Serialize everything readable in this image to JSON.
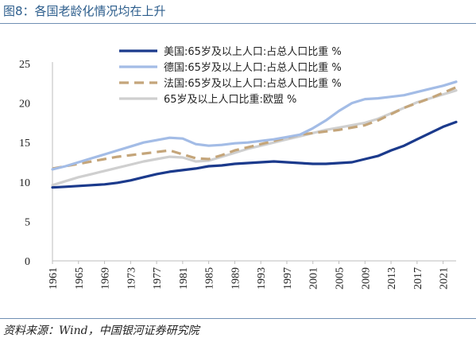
{
  "title": "图8：各国老龄化情况均在上升",
  "source": "资料来源：Wind，中国银河证券研究院",
  "chart_data": {
    "type": "line",
    "title": "图8：各国老龄化情况均在上升",
    "xlabel": "",
    "ylabel": "",
    "xlim": [
      1961,
      2023
    ],
    "ylim": [
      0,
      25
    ],
    "yticks": [
      0,
      5,
      10,
      15,
      20,
      25
    ],
    "xticks": [
      "1961",
      "1965",
      "1969",
      "1973",
      "1977",
      "1981",
      "1985",
      "1989",
      "1993",
      "1997",
      "2001",
      "2005",
      "2009",
      "2013",
      "2017",
      "2021"
    ],
    "grid": false,
    "legend_position": "top-center",
    "series": [
      {
        "name": "美国:65岁及以上人口:占总人口比重 %",
        "color": "#1b3a8c",
        "dash": "solid",
        "points": [
          [
            1961,
            9.3
          ],
          [
            1963,
            9.4
          ],
          [
            1965,
            9.5
          ],
          [
            1967,
            9.6
          ],
          [
            1969,
            9.7
          ],
          [
            1971,
            9.9
          ],
          [
            1973,
            10.2
          ],
          [
            1975,
            10.6
          ],
          [
            1977,
            11.0
          ],
          [
            1979,
            11.3
          ],
          [
            1981,
            11.5
          ],
          [
            1983,
            11.7
          ],
          [
            1985,
            12.0
          ],
          [
            1987,
            12.1
          ],
          [
            1989,
            12.3
          ],
          [
            1991,
            12.4
          ],
          [
            1993,
            12.5
          ],
          [
            1995,
            12.6
          ],
          [
            1997,
            12.5
          ],
          [
            1999,
            12.4
          ],
          [
            2001,
            12.3
          ],
          [
            2003,
            12.3
          ],
          [
            2005,
            12.4
          ],
          [
            2007,
            12.5
          ],
          [
            2009,
            12.9
          ],
          [
            2011,
            13.3
          ],
          [
            2013,
            14.0
          ],
          [
            2015,
            14.6
          ],
          [
            2017,
            15.4
          ],
          [
            2019,
            16.2
          ],
          [
            2021,
            17.0
          ],
          [
            2023,
            17.6
          ]
        ]
      },
      {
        "name": "德国:65岁及以上人口:占总人口比重 %",
        "color": "#a3bce6",
        "dash": "solid",
        "points": [
          [
            1961,
            11.6
          ],
          [
            1963,
            12.0
          ],
          [
            1965,
            12.5
          ],
          [
            1967,
            13.0
          ],
          [
            1969,
            13.5
          ],
          [
            1971,
            14.0
          ],
          [
            1973,
            14.5
          ],
          [
            1975,
            15.0
          ],
          [
            1977,
            15.3
          ],
          [
            1979,
            15.6
          ],
          [
            1981,
            15.5
          ],
          [
            1983,
            14.8
          ],
          [
            1985,
            14.6
          ],
          [
            1987,
            14.7
          ],
          [
            1989,
            14.9
          ],
          [
            1991,
            15.0
          ],
          [
            1993,
            15.2
          ],
          [
            1995,
            15.4
          ],
          [
            1997,
            15.7
          ],
          [
            1999,
            16.0
          ],
          [
            2001,
            16.8
          ],
          [
            2003,
            17.8
          ],
          [
            2005,
            19.0
          ],
          [
            2007,
            20.0
          ],
          [
            2009,
            20.5
          ],
          [
            2011,
            20.6
          ],
          [
            2013,
            20.8
          ],
          [
            2015,
            21.0
          ],
          [
            2017,
            21.4
          ],
          [
            2019,
            21.8
          ],
          [
            2021,
            22.2
          ],
          [
            2023,
            22.7
          ]
        ]
      },
      {
        "name": "法国:65岁及以上人口:占总人口比重 %",
        "color": "#c4a57a",
        "dash": "dashed",
        "points": [
          [
            1961,
            11.7
          ],
          [
            1963,
            12.0
          ],
          [
            1965,
            12.3
          ],
          [
            1967,
            12.6
          ],
          [
            1969,
            12.9
          ],
          [
            1971,
            13.2
          ],
          [
            1973,
            13.4
          ],
          [
            1975,
            13.6
          ],
          [
            1977,
            13.8
          ],
          [
            1979,
            14.0
          ],
          [
            1981,
            13.5
          ],
          [
            1983,
            13.0
          ],
          [
            1985,
            12.9
          ],
          [
            1987,
            13.4
          ],
          [
            1989,
            14.0
          ],
          [
            1991,
            14.4
          ],
          [
            1993,
            14.8
          ],
          [
            1995,
            15.2
          ],
          [
            1997,
            15.6
          ],
          [
            1999,
            16.0
          ],
          [
            2001,
            16.2
          ],
          [
            2003,
            16.4
          ],
          [
            2005,
            16.6
          ],
          [
            2007,
            16.9
          ],
          [
            2009,
            17.2
          ],
          [
            2011,
            17.8
          ],
          [
            2013,
            18.6
          ],
          [
            2015,
            19.4
          ],
          [
            2017,
            20.0
          ],
          [
            2019,
            20.6
          ],
          [
            2021,
            21.3
          ],
          [
            2023,
            22.0
          ]
        ]
      },
      {
        "name": "65岁及以上人口比重:欧盟 %",
        "color": "#cfcfcf",
        "dash": "solid",
        "points": [
          [
            1961,
            9.6
          ],
          [
            1963,
            10.1
          ],
          [
            1965,
            10.6
          ],
          [
            1967,
            11.0
          ],
          [
            1969,
            11.4
          ],
          [
            1971,
            11.8
          ],
          [
            1973,
            12.2
          ],
          [
            1975,
            12.6
          ],
          [
            1977,
            12.9
          ],
          [
            1979,
            13.2
          ],
          [
            1981,
            13.1
          ],
          [
            1983,
            12.6
          ],
          [
            1985,
            12.7
          ],
          [
            1987,
            13.2
          ],
          [
            1989,
            13.7
          ],
          [
            1991,
            14.2
          ],
          [
            1993,
            14.6
          ],
          [
            1995,
            15.0
          ],
          [
            1997,
            15.4
          ],
          [
            1999,
            15.8
          ],
          [
            2001,
            16.2
          ],
          [
            2003,
            16.6
          ],
          [
            2005,
            16.9
          ],
          [
            2007,
            17.2
          ],
          [
            2009,
            17.5
          ],
          [
            2011,
            18.0
          ],
          [
            2013,
            18.7
          ],
          [
            2015,
            19.4
          ],
          [
            2017,
            20.1
          ],
          [
            2019,
            20.6
          ],
          [
            2021,
            21.1
          ],
          [
            2023,
            21.6
          ]
        ]
      }
    ]
  }
}
